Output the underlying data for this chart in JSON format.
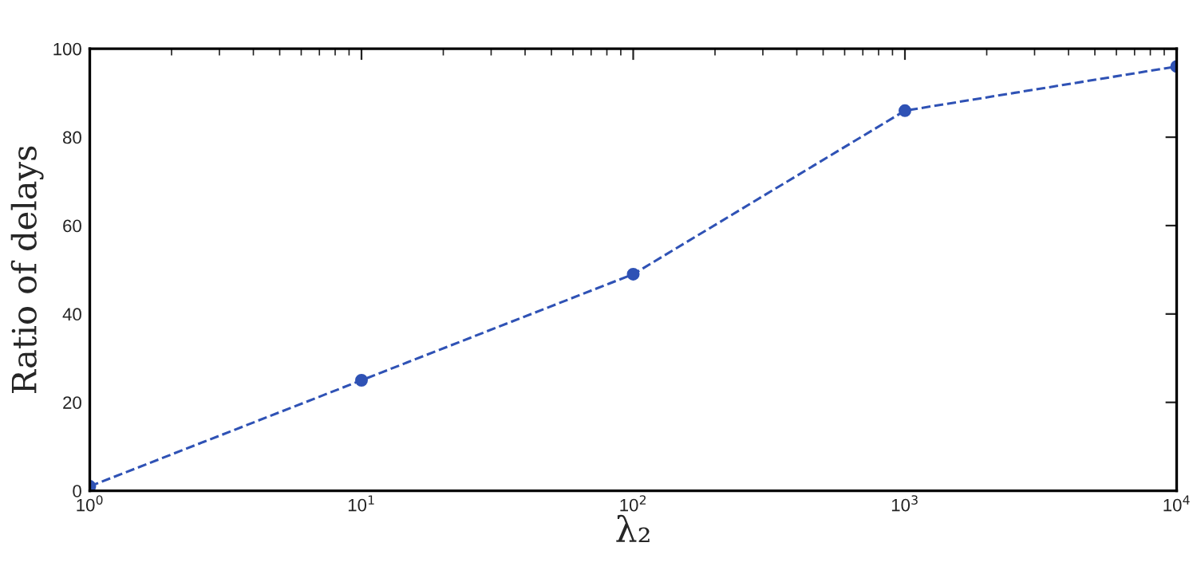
{
  "chart_data": {
    "type": "line",
    "xlabel": "λ₂",
    "ylabel": "Ratio of delays",
    "log": "x",
    "x": [
      1,
      10,
      100,
      1000,
      10000
    ],
    "series": [
      {
        "color": "#2f52b5",
        "values": [
          1,
          25,
          49,
          86,
          96
        ]
      }
    ],
    "xlim": [
      1,
      10000
    ],
    "xticks": [
      {
        "value": 1,
        "label": "10$^{0}$"
      },
      {
        "value": 10,
        "label": "10$^{1}$"
      },
      {
        "value": 100,
        "label": "10$^{2}$"
      },
      {
        "value": 1000,
        "label": "10$^{3}$"
      },
      {
        "value": 10000,
        "label": "10$^{4}$"
      }
    ],
    "ylim": [
      0,
      100
    ],
    "yticks": [
      0,
      20,
      40,
      60,
      80,
      100
    ],
    "grid": false,
    "marker": "circle",
    "line_style": "dashed"
  }
}
